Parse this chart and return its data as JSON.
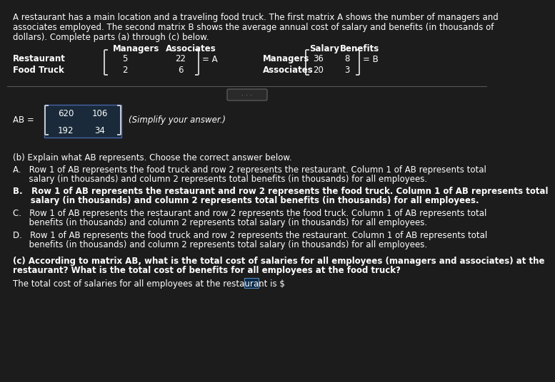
{
  "bg_color": "#1c1c1c",
  "text_color": "#ffffff",
  "intro_line1": "A restaurant has a main location and a traveling food truck. The first matrix A shows the number of managers and",
  "intro_line2": "associates employed. The second matrix B shows the average annual cost of salary and benefits (in thousands of",
  "intro_line3": "dollars). Complete parts (a) through (c) below.",
  "matA_col1": "Managers",
  "matA_col2": "Associates",
  "matA_row1": "Restaurant",
  "matA_row2": "Food Truck",
  "matA_v00": "5",
  "matA_v01": "22",
  "matA_v10": "2",
  "matA_v11": "6",
  "matA_label": "= A",
  "matB_col1": "Salary",
  "matB_col2": "Benefits",
  "matB_row1": "Managers",
  "matB_row2": "Associates",
  "matB_v00": "36",
  "matB_v01": "8",
  "matB_v10": "20",
  "matB_v11": "3",
  "matB_label": "= B",
  "AB_label": "AB =",
  "AB_v00": "620",
  "AB_v01": "106",
  "AB_v10": "192",
  "AB_v11": "34",
  "simplify_text": "(Simplify your answer.)",
  "partb_intro": "(b) Explain what AB represents. Choose the correct answer below.",
  "optA_l1": "A.   Row 1 of AB represents the food truck and row 2 represents the restaurant. Column 1 of AB represents total",
  "optA_l2": "      salary (in thousands) and column 2 represents total benefits (in thousands) for all employees.",
  "optB_l1": "B.   Row 1 of AB represents the restaurant and row 2 represents the food truck. Column 1 of AB represents total",
  "optB_l2": "      salary (in thousands) and column 2 represents total benefits (in thousands) for all employees.",
  "optC_l1": "C.   Row 1 of AB represents the restaurant and row 2 represents the food truck. Column 1 of AB represents total",
  "optC_l2": "      benefits (in thousands) and column 2 represents total salary (in thousands) for all employees.",
  "optD_l1": "D.   Row 1 of AB represents the food truck and row 2 represents the restaurant. Column 1 of AB represents total",
  "optD_l2": "      benefits (in thousands) and column 2 represents total salary (in thousands) for all employees.",
  "partc_l1": "(c) According to matrix AB, what is the total cost of salaries for all employees (managers and associates) at the",
  "partc_l2": "restaurant? What is the total cost of benefits for all employees at the food truck?",
  "partc_q": "The total cost of salaries for all employees at the restaurant is $",
  "dot_color": "#888888",
  "divider_color": "#555555",
  "box_face": "#0a2a4a",
  "box_edge": "#5588bb",
  "bracket_color": "#cccccc",
  "ab_box_face": "#1a2a3a",
  "ab_box_edge": "#4466aa"
}
